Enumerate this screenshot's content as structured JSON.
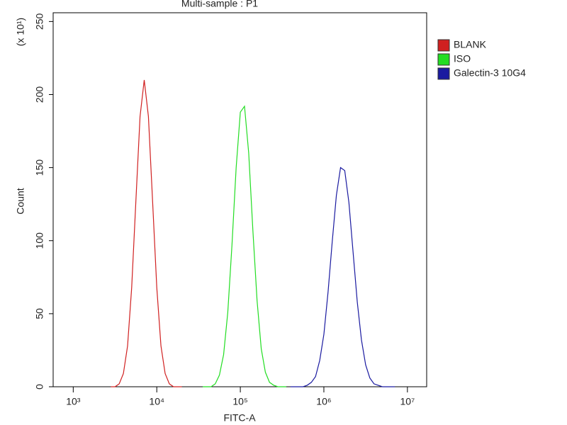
{
  "chart_data": {
    "type": "line",
    "title": "Multi-sample : P1",
    "x_label": "FITC-A",
    "y_label": "Count",
    "y_multiplier": "(x 10¹)",
    "log_x": true,
    "xlim": [
      575,
      17000000
    ],
    "xticks": [
      {
        "value": 1000,
        "label": "10³"
      },
      {
        "value": 10000,
        "label": "10⁴"
      },
      {
        "value": 100000,
        "label": "10⁵"
      },
      {
        "value": 1000000,
        "label": "10⁶"
      },
      {
        "value": 10000000,
        "label": "10⁷"
      }
    ],
    "ylim": [
      0,
      256
    ],
    "yticks": [
      0,
      50,
      100,
      150,
      200,
      250
    ],
    "legend": "right",
    "series": [
      {
        "name": "BLANK",
        "color": "#d02020",
        "x": [
          2818,
          3162,
          3548,
          3981,
          4467,
          5012,
          5623,
          6310,
          7079,
          7943,
          8913,
          10000,
          11220,
          12589,
          14125,
          15849,
          17783,
          19953
        ],
        "values": [
          0,
          0,
          2,
          9,
          28,
          68,
          127,
          185,
          210,
          185,
          127,
          68,
          28,
          9,
          2,
          0,
          0,
          0
        ]
      },
      {
        "name": "ISO",
        "color": "#22dd22",
        "x": [
          35481,
          39811,
          44668,
          50119,
          56234,
          63096,
          70795,
          79433,
          89125,
          100000,
          112202,
          125893,
          141254,
          158489,
          177828,
          199526,
          223872,
          251189,
          281838,
          316228,
          354813
        ],
        "values": [
          0,
          0,
          0,
          2,
          8,
          22,
          51,
          97,
          150,
          188,
          192,
          160,
          107,
          59,
          26,
          10,
          3,
          1,
          0,
          0,
          0
        ]
      },
      {
        "name": "Galectin-3 10G4",
        "color": "#1a1aa0",
        "x": [
          398107,
          446684,
          501187,
          562341,
          630957,
          707946,
          794328,
          891251,
          1000000,
          1122018,
          1258925,
          1412538,
          1584893,
          1778279,
          1995262,
          2238721,
          2511886,
          2818383,
          3162278,
          3548134,
          3981072,
          4466836,
          5011872,
          5623413,
          6309573,
          7079458
        ],
        "values": [
          0,
          0,
          0,
          0,
          1,
          3,
          7,
          18,
          36,
          65,
          99,
          131,
          150,
          148,
          126,
          92,
          58,
          32,
          15,
          6,
          2,
          1,
          0,
          0,
          0,
          0
        ]
      }
    ]
  }
}
